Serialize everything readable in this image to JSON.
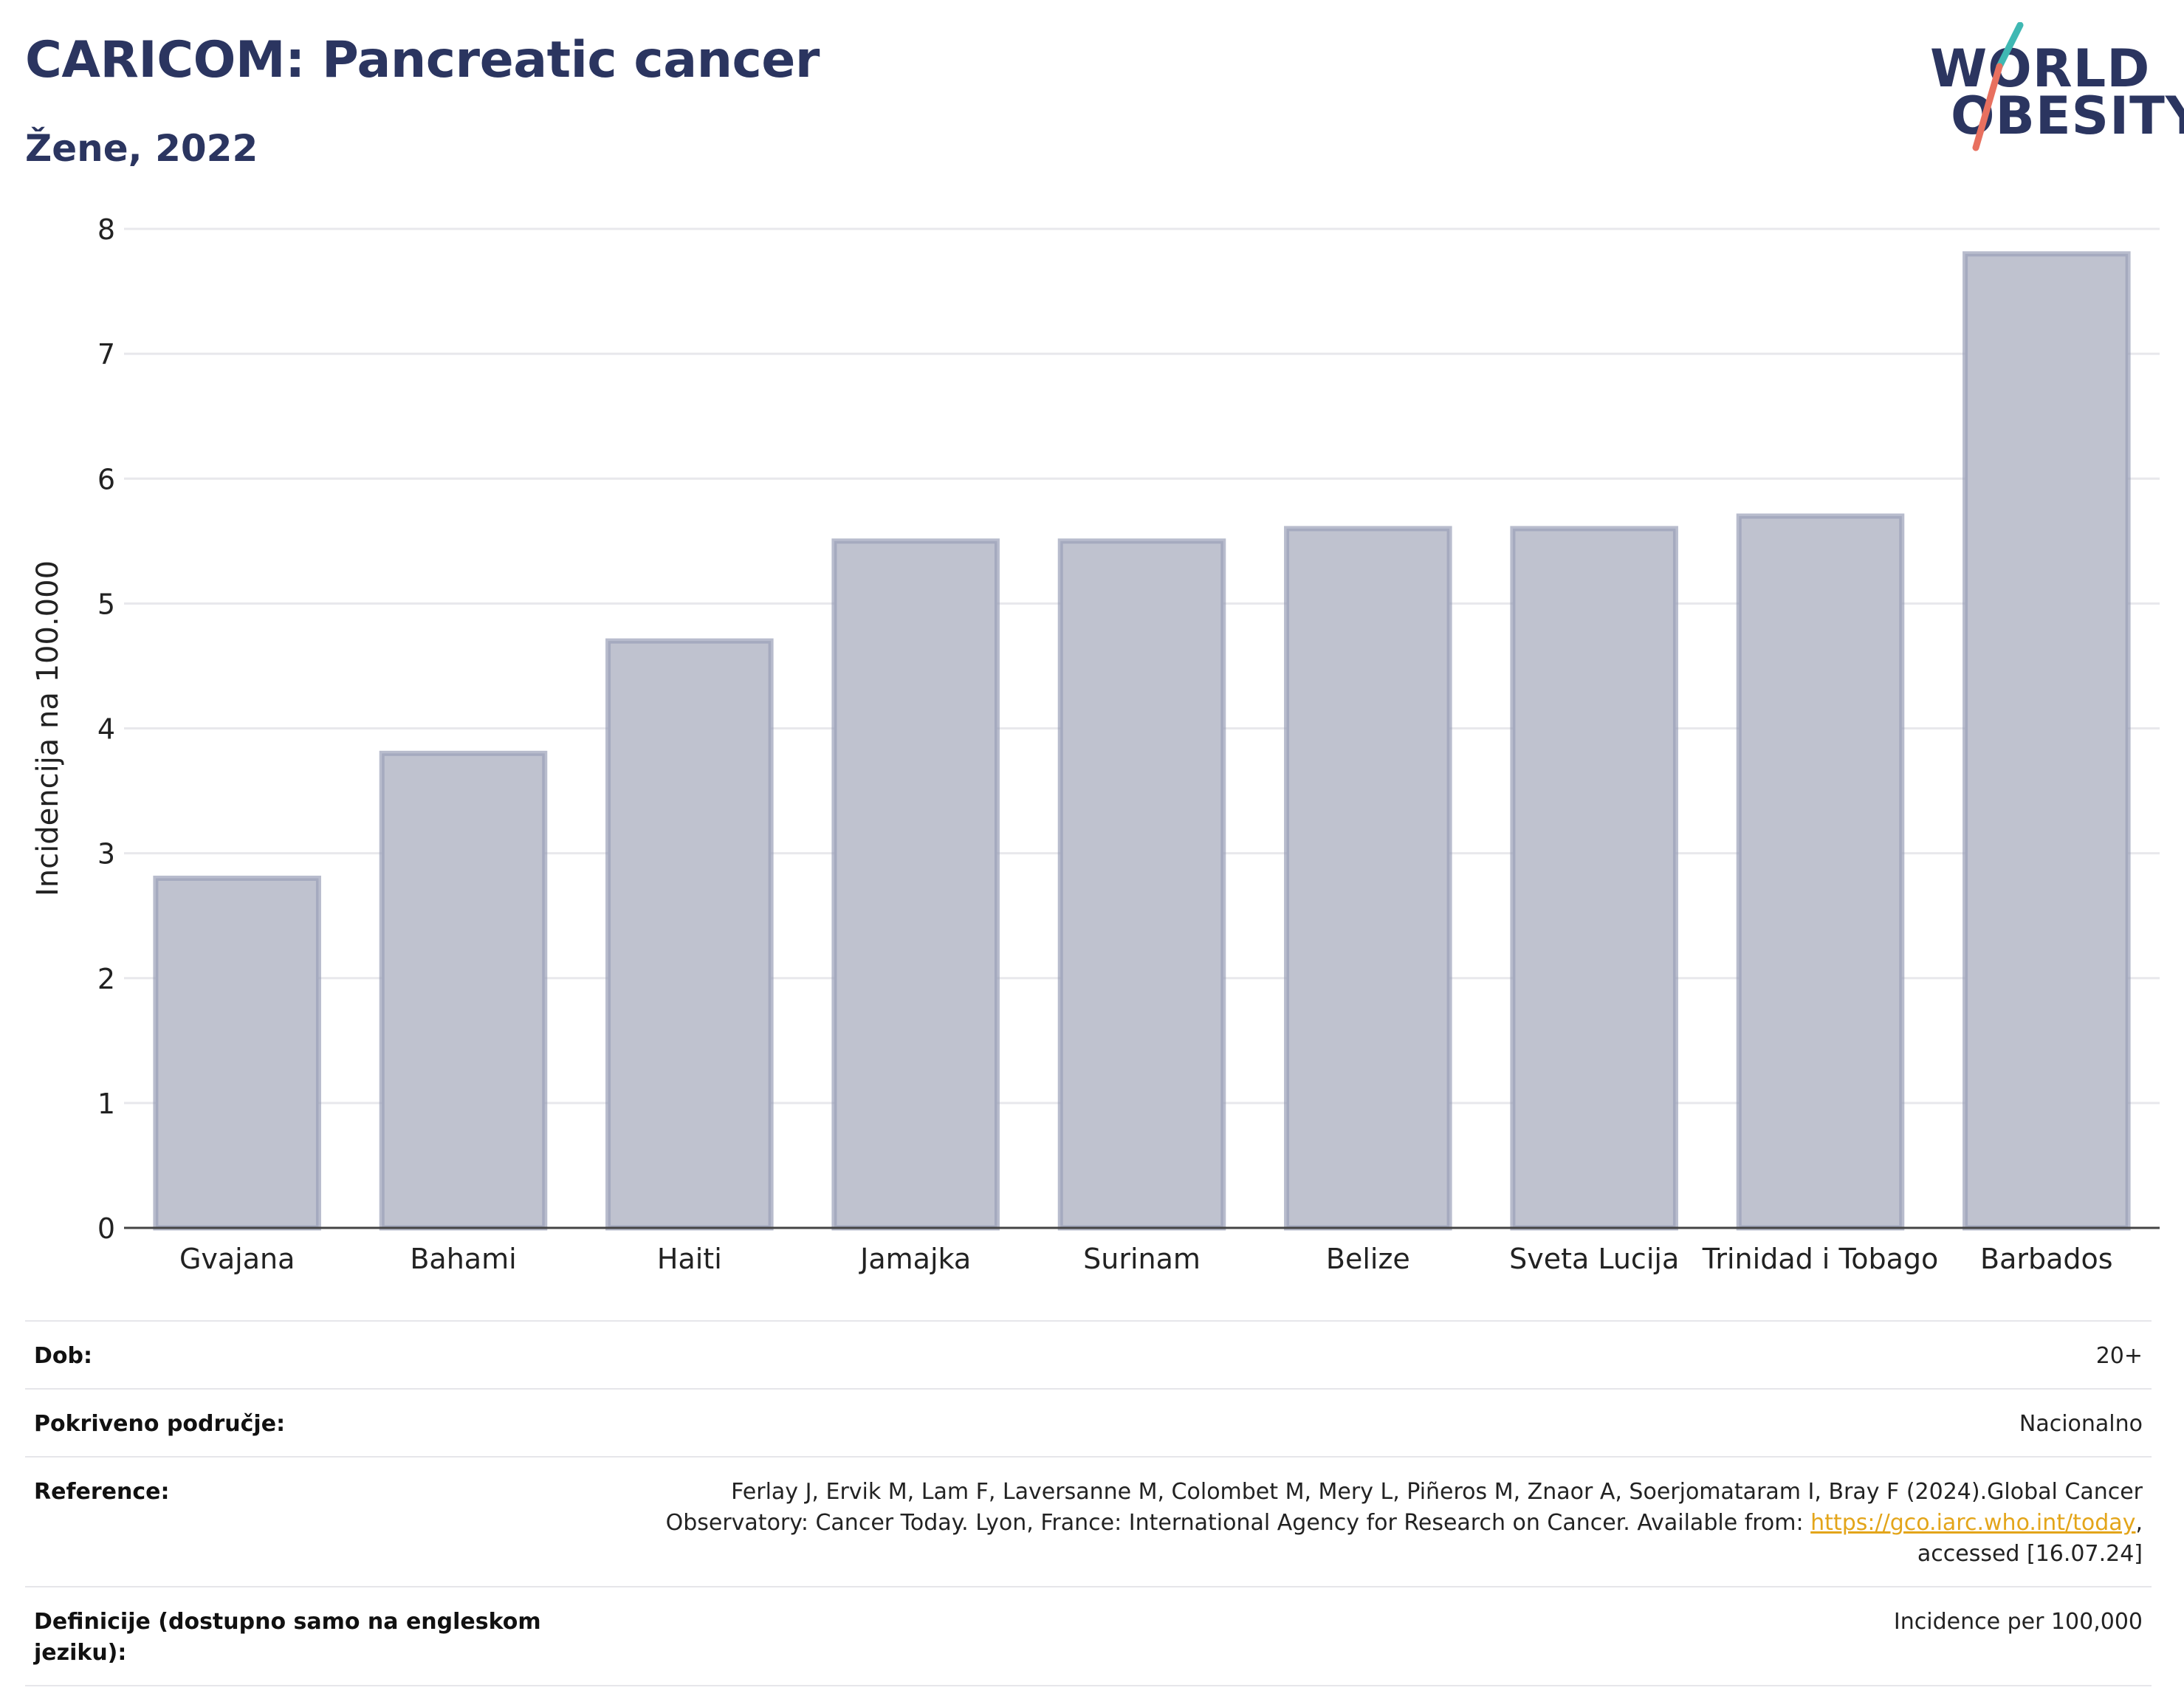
{
  "title": "CARICOM: Pancreatic cancer",
  "subtitle": "Žene, 2022",
  "logo": {
    "line1": "WORLD",
    "line2": "OBESITY",
    "colors": {
      "teal": "#3fb8b3",
      "coral": "#e8705f",
      "navy": "#2b3560"
    }
  },
  "chart_data": {
    "type": "bar",
    "categories": [
      "Gvajana",
      "Bahami",
      "Haiti",
      "Jamajka",
      "Surinam",
      "Belize",
      "Sveta Lucija",
      "Trinidad i Tobago",
      "Barbados"
    ],
    "values": [
      2.8,
      3.8,
      4.7,
      5.5,
      5.5,
      5.6,
      5.6,
      5.7,
      7.8
    ],
    "ylabel": "Incidencija na 100.000",
    "xlabel": "",
    "ylim": [
      0,
      8
    ],
    "yticks": [
      0,
      1,
      2,
      3,
      4,
      5,
      6,
      7,
      8
    ],
    "grid": true,
    "colors": {
      "bar_fill": "#bfc2cf",
      "bar_stroke": "#9aa0b8",
      "grid": "#e8e8ec",
      "axis": "#444444"
    }
  },
  "info": [
    {
      "label": "Dob:",
      "value": "20+"
    },
    {
      "label": "Pokriveno područje:",
      "value": "Nacionalno"
    },
    {
      "label": "Reference:",
      "value_lines": [
        "Ferlay J, Ervik M, Lam F, Laversanne M, Colombet M, Mery L, Piñeros M, Znaor A, Soerjomataram I, Bray F (2024).Global Cancer",
        "Observatory: Cancer Today. Lyon, France: International Agency for Research on Cancer. Available from: "
      ],
      "link": "https://gco.iarc.who.int/today",
      "after_link": ",",
      "last_line": "accessed [16.07.24]"
    },
    {
      "label": "Definicije (dostupno samo na engleskom jeziku):",
      "value": "Incidence per 100,000"
    }
  ]
}
